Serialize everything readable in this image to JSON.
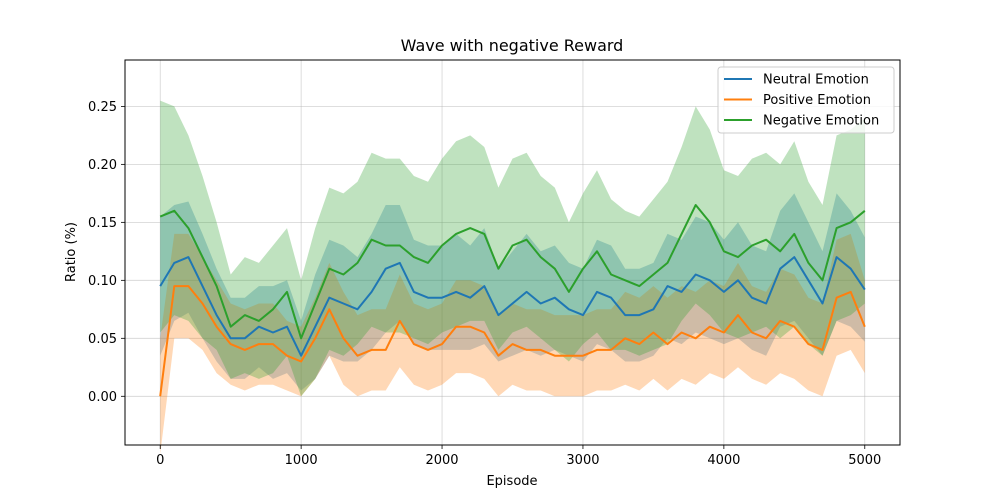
{
  "chart_data": {
    "type": "line",
    "title": "Wave with negative Reward",
    "xlabel": "Episode",
    "ylabel": "Ratio (%)",
    "xlim": [
      -250,
      5250
    ],
    "ylim": [
      -0.042,
      0.29
    ],
    "xticks": [
      0,
      1000,
      2000,
      3000,
      4000,
      5000
    ],
    "yticks": [
      0.0,
      0.05,
      0.1,
      0.15,
      0.2,
      0.25
    ],
    "xtick_labels": [
      "0",
      "1000",
      "2000",
      "3000",
      "4000",
      "5000"
    ],
    "ytick_labels": [
      "0.00",
      "0.05",
      "0.10",
      "0.15",
      "0.20",
      "0.25"
    ],
    "grid": true,
    "legend_position": "top-right",
    "shaded_band": "mean ± std",
    "series": [
      {
        "name": "Neutral Emotion",
        "color": "#1f77b4",
        "x": [
          0,
          100,
          200,
          300,
          400,
          500,
          600,
          700,
          800,
          900,
          1000,
          1100,
          1200,
          1300,
          1400,
          1500,
          1600,
          1700,
          1800,
          1900,
          2000,
          2100,
          2200,
          2300,
          2400,
          2500,
          2600,
          2700,
          2800,
          2900,
          3000,
          3100,
          3200,
          3300,
          3400,
          3500,
          3600,
          3700,
          3800,
          3900,
          4000,
          4100,
          4200,
          4300,
          4400,
          4500,
          4600,
          4700,
          4800,
          4900,
          5000
        ],
        "mean": [
          0.095,
          0.115,
          0.12,
          0.095,
          0.07,
          0.05,
          0.05,
          0.06,
          0.055,
          0.06,
          0.035,
          0.06,
          0.085,
          0.08,
          0.075,
          0.09,
          0.11,
          0.115,
          0.09,
          0.085,
          0.085,
          0.09,
          0.085,
          0.095,
          0.07,
          0.08,
          0.09,
          0.08,
          0.085,
          0.075,
          0.07,
          0.09,
          0.085,
          0.07,
          0.07,
          0.075,
          0.095,
          0.09,
          0.105,
          0.1,
          0.09,
          0.1,
          0.085,
          0.08,
          0.11,
          0.12,
          0.1,
          0.08,
          0.12,
          0.11,
          0.092
        ],
        "std": [
          0.06,
          0.05,
          0.048,
          0.045,
          0.04,
          0.035,
          0.035,
          0.035,
          0.04,
          0.04,
          0.03,
          0.045,
          0.05,
          0.05,
          0.045,
          0.05,
          0.055,
          0.05,
          0.045,
          0.045,
          0.045,
          0.05,
          0.045,
          0.05,
          0.04,
          0.045,
          0.05,
          0.045,
          0.045,
          0.04,
          0.04,
          0.045,
          0.045,
          0.04,
          0.04,
          0.04,
          0.045,
          0.045,
          0.05,
          0.05,
          0.045,
          0.05,
          0.045,
          0.045,
          0.05,
          0.055,
          0.05,
          0.045,
          0.055,
          0.05,
          0.045
        ]
      },
      {
        "name": "Positive Emotion",
        "color": "#ff7f0e",
        "x": [
          0,
          100,
          200,
          300,
          400,
          500,
          600,
          700,
          800,
          900,
          1000,
          1100,
          1200,
          1300,
          1400,
          1500,
          1600,
          1700,
          1800,
          1900,
          2000,
          2100,
          2200,
          2300,
          2400,
          2500,
          2600,
          2700,
          2800,
          2900,
          3000,
          3100,
          3200,
          3300,
          3400,
          3500,
          3600,
          3700,
          3800,
          3900,
          4000,
          4100,
          4200,
          4300,
          4400,
          4500,
          4600,
          4700,
          4800,
          4900,
          5000
        ],
        "mean": [
          0.0,
          0.095,
          0.095,
          0.08,
          0.06,
          0.045,
          0.04,
          0.045,
          0.045,
          0.035,
          0.03,
          0.05,
          0.075,
          0.05,
          0.035,
          0.04,
          0.04,
          0.065,
          0.045,
          0.04,
          0.045,
          0.06,
          0.06,
          0.055,
          0.035,
          0.045,
          0.04,
          0.04,
          0.035,
          0.035,
          0.035,
          0.04,
          0.04,
          0.05,
          0.045,
          0.055,
          0.045,
          0.055,
          0.05,
          0.06,
          0.055,
          0.07,
          0.055,
          0.05,
          0.065,
          0.06,
          0.045,
          0.04,
          0.085,
          0.09,
          0.06
        ],
        "std": [
          0.05,
          0.045,
          0.045,
          0.04,
          0.04,
          0.035,
          0.035,
          0.035,
          0.035,
          0.03,
          0.03,
          0.035,
          0.04,
          0.04,
          0.035,
          0.035,
          0.035,
          0.04,
          0.035,
          0.035,
          0.035,
          0.04,
          0.04,
          0.04,
          0.035,
          0.035,
          0.035,
          0.035,
          0.035,
          0.035,
          0.035,
          0.035,
          0.035,
          0.04,
          0.04,
          0.04,
          0.04,
          0.04,
          0.04,
          0.04,
          0.04,
          0.045,
          0.04,
          0.04,
          0.045,
          0.045,
          0.04,
          0.04,
          0.05,
          0.05,
          0.04
        ]
      },
      {
        "name": "Negative Emotion",
        "color": "#2ca02c",
        "x": [
          0,
          100,
          200,
          300,
          400,
          500,
          600,
          700,
          800,
          900,
          1000,
          1100,
          1200,
          1300,
          1400,
          1500,
          1600,
          1700,
          1800,
          1900,
          2000,
          2100,
          2200,
          2300,
          2400,
          2500,
          2600,
          2700,
          2800,
          2900,
          3000,
          3100,
          3200,
          3300,
          3400,
          3500,
          3600,
          3700,
          3800,
          3900,
          4000,
          4100,
          4200,
          4300,
          4400,
          4500,
          4600,
          4700,
          4800,
          4900,
          5000
        ],
        "mean": [
          0.155,
          0.16,
          0.145,
          0.12,
          0.095,
          0.06,
          0.07,
          0.065,
          0.075,
          0.09,
          0.05,
          0.08,
          0.11,
          0.105,
          0.115,
          0.135,
          0.13,
          0.13,
          0.12,
          0.115,
          0.13,
          0.14,
          0.145,
          0.14,
          0.11,
          0.13,
          0.135,
          0.12,
          0.11,
          0.09,
          0.11,
          0.125,
          0.105,
          0.1,
          0.095,
          0.105,
          0.115,
          0.14,
          0.165,
          0.15,
          0.125,
          0.12,
          0.13,
          0.135,
          0.125,
          0.14,
          0.115,
          0.1,
          0.145,
          0.15,
          0.16
        ],
        "std": [
          0.1,
          0.09,
          0.08,
          0.07,
          0.055,
          0.045,
          0.05,
          0.05,
          0.055,
          0.055,
          0.05,
          0.065,
          0.07,
          0.07,
          0.07,
          0.075,
          0.075,
          0.075,
          0.07,
          0.07,
          0.075,
          0.08,
          0.08,
          0.075,
          0.07,
          0.075,
          0.075,
          0.07,
          0.07,
          0.06,
          0.065,
          0.07,
          0.065,
          0.06,
          0.06,
          0.065,
          0.07,
          0.075,
          0.085,
          0.08,
          0.07,
          0.07,
          0.075,
          0.075,
          0.075,
          0.08,
          0.07,
          0.065,
          0.08,
          0.08,
          0.08
        ]
      }
    ]
  }
}
